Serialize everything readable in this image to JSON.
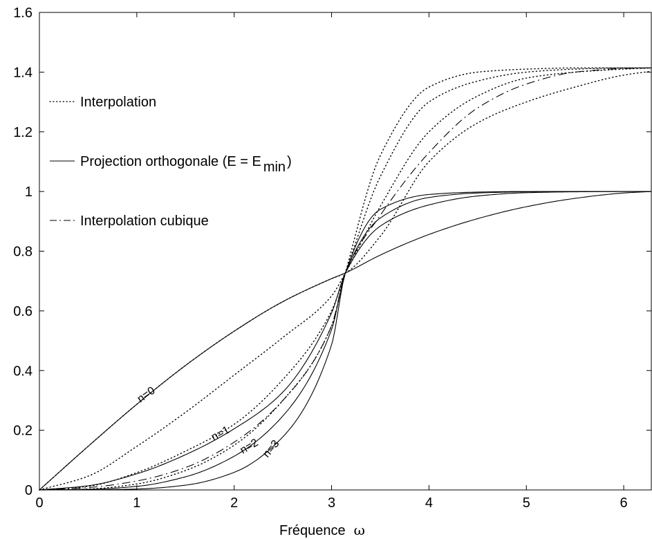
{
  "chart_data": {
    "type": "line",
    "title": "",
    "xlabel": "Fréquence",
    "xlabel_symbol": "ω",
    "ylabel": "",
    "xlim": [
      0,
      6.2832
    ],
    "ylim": [
      0,
      1.6
    ],
    "xticks": [
      "0",
      "1",
      "2",
      "3",
      "4",
      "5",
      "6"
    ],
    "yticks": [
      "0",
      "0.2",
      "0.4",
      "0.6",
      "0.8",
      "1",
      "1.2",
      "1.4",
      "1.6"
    ],
    "grid": false,
    "legend_position": "top-left",
    "legend": [
      {
        "label": "Interpolation",
        "style": "dotted"
      },
      {
        "label": "Projection orthogonale (E = E",
        "subscript": "min",
        "suffix": ")",
        "style": "solid"
      },
      {
        "label": "Interpolation cubique",
        "style": "dashdot"
      }
    ],
    "annotations": [
      "n=0",
      "n=1",
      "n=2",
      "n=3"
    ],
    "series": [
      {
        "style": "solid",
        "annotation": "n=0",
        "x": [
          0,
          0.5,
          1,
          1.5,
          2,
          2.5,
          3,
          3.1416,
          3.5,
          4,
          4.5,
          5,
          5.5,
          6,
          6.2832
        ],
        "y": [
          0,
          0.146,
          0.287,
          0.417,
          0.532,
          0.631,
          0.708,
          0.727,
          0.787,
          0.856,
          0.909,
          0.949,
          0.977,
          0.995,
          1.0
        ]
      },
      {
        "style": "solid",
        "annotation": "n=1",
        "x": [
          0,
          0.5,
          1,
          1.5,
          2,
          2.5,
          3,
          3.1416,
          3.5,
          4,
          4.5,
          5,
          5.5,
          6,
          6.2832
        ],
        "y": [
          0,
          0.014,
          0.054,
          0.118,
          0.205,
          0.328,
          0.593,
          0.727,
          0.884,
          0.955,
          0.985,
          0.996,
          0.999,
          1.0,
          1.0
        ]
      },
      {
        "style": "solid",
        "annotation": "n=2",
        "x": [
          0,
          0.5,
          1,
          1.5,
          2,
          2.5,
          3,
          3.1416,
          3.5,
          4,
          4.5,
          5,
          5.5,
          6,
          6.2832
        ],
        "y": [
          0,
          0.002,
          0.012,
          0.044,
          0.113,
          0.248,
          0.537,
          0.727,
          0.911,
          0.98,
          0.995,
          0.999,
          1.0,
          1.0,
          1.0
        ]
      },
      {
        "style": "solid",
        "annotation": "n=3",
        "x": [
          0,
          0.5,
          1,
          1.5,
          2,
          2.5,
          3,
          3.1416,
          3.5,
          4,
          4.5,
          5,
          5.5,
          6,
          6.2832
        ],
        "y": [
          0,
          0.0003,
          0.003,
          0.016,
          0.059,
          0.178,
          0.486,
          0.727,
          0.94,
          0.99,
          0.998,
          1.0,
          1.0,
          1.0,
          1.0
        ]
      },
      {
        "style": "dotted",
        "x": [
          0,
          0.5,
          1,
          1.5,
          2,
          2.5,
          3,
          3.1416,
          3.5,
          4,
          4.5,
          5,
          5.5,
          6,
          6.2832
        ],
        "y": [
          0,
          0.146,
          0.287,
          0.417,
          0.532,
          0.631,
          0.708,
          0.727,
          0.85,
          1.1,
          1.23,
          1.3,
          1.35,
          1.39,
          1.403
        ]
      },
      {
        "style": "dotted",
        "x": [
          0,
          0.5,
          1,
          1.5,
          2,
          2.5,
          3,
          3.1416,
          3.5,
          4,
          4.5,
          5,
          5.5,
          6,
          6.2832
        ],
        "y": [
          0,
          0.046,
          0.146,
          0.26,
          0.385,
          0.511,
          0.65,
          0.727,
          0.95,
          1.2,
          1.32,
          1.38,
          1.4,
          1.41,
          1.414
        ]
      },
      {
        "style": "dotted",
        "x": [
          0,
          0.5,
          1,
          1.5,
          2,
          2.5,
          3,
          3.1416,
          3.5,
          4,
          4.5,
          5,
          5.5,
          6,
          6.2832
        ],
        "y": [
          0,
          0.012,
          0.058,
          0.13,
          0.22,
          0.37,
          0.6,
          0.727,
          1.05,
          1.3,
          1.37,
          1.4,
          1.41,
          1.414,
          1.414
        ]
      },
      {
        "style": "dotted",
        "x": [
          0,
          0.5,
          1,
          1.5,
          2,
          2.5,
          3,
          3.1416,
          3.5,
          4,
          4.5,
          5,
          5.5,
          6,
          6.2832
        ],
        "y": [
          0,
          0.003,
          0.02,
          0.065,
          0.15,
          0.3,
          0.55,
          0.727,
          1.12,
          1.35,
          1.4,
          1.41,
          1.414,
          1.414,
          1.414
        ]
      },
      {
        "style": "dashdot",
        "x": [
          0,
          0.5,
          1,
          1.5,
          2,
          2.5,
          3,
          3.1416,
          3.5,
          4,
          4.5,
          5,
          5.5,
          6,
          6.2832
        ],
        "y": [
          0,
          0.008,
          0.03,
          0.075,
          0.16,
          0.3,
          0.55,
          0.727,
          0.92,
          1.13,
          1.28,
          1.36,
          1.4,
          1.412,
          1.414
        ]
      }
    ]
  }
}
